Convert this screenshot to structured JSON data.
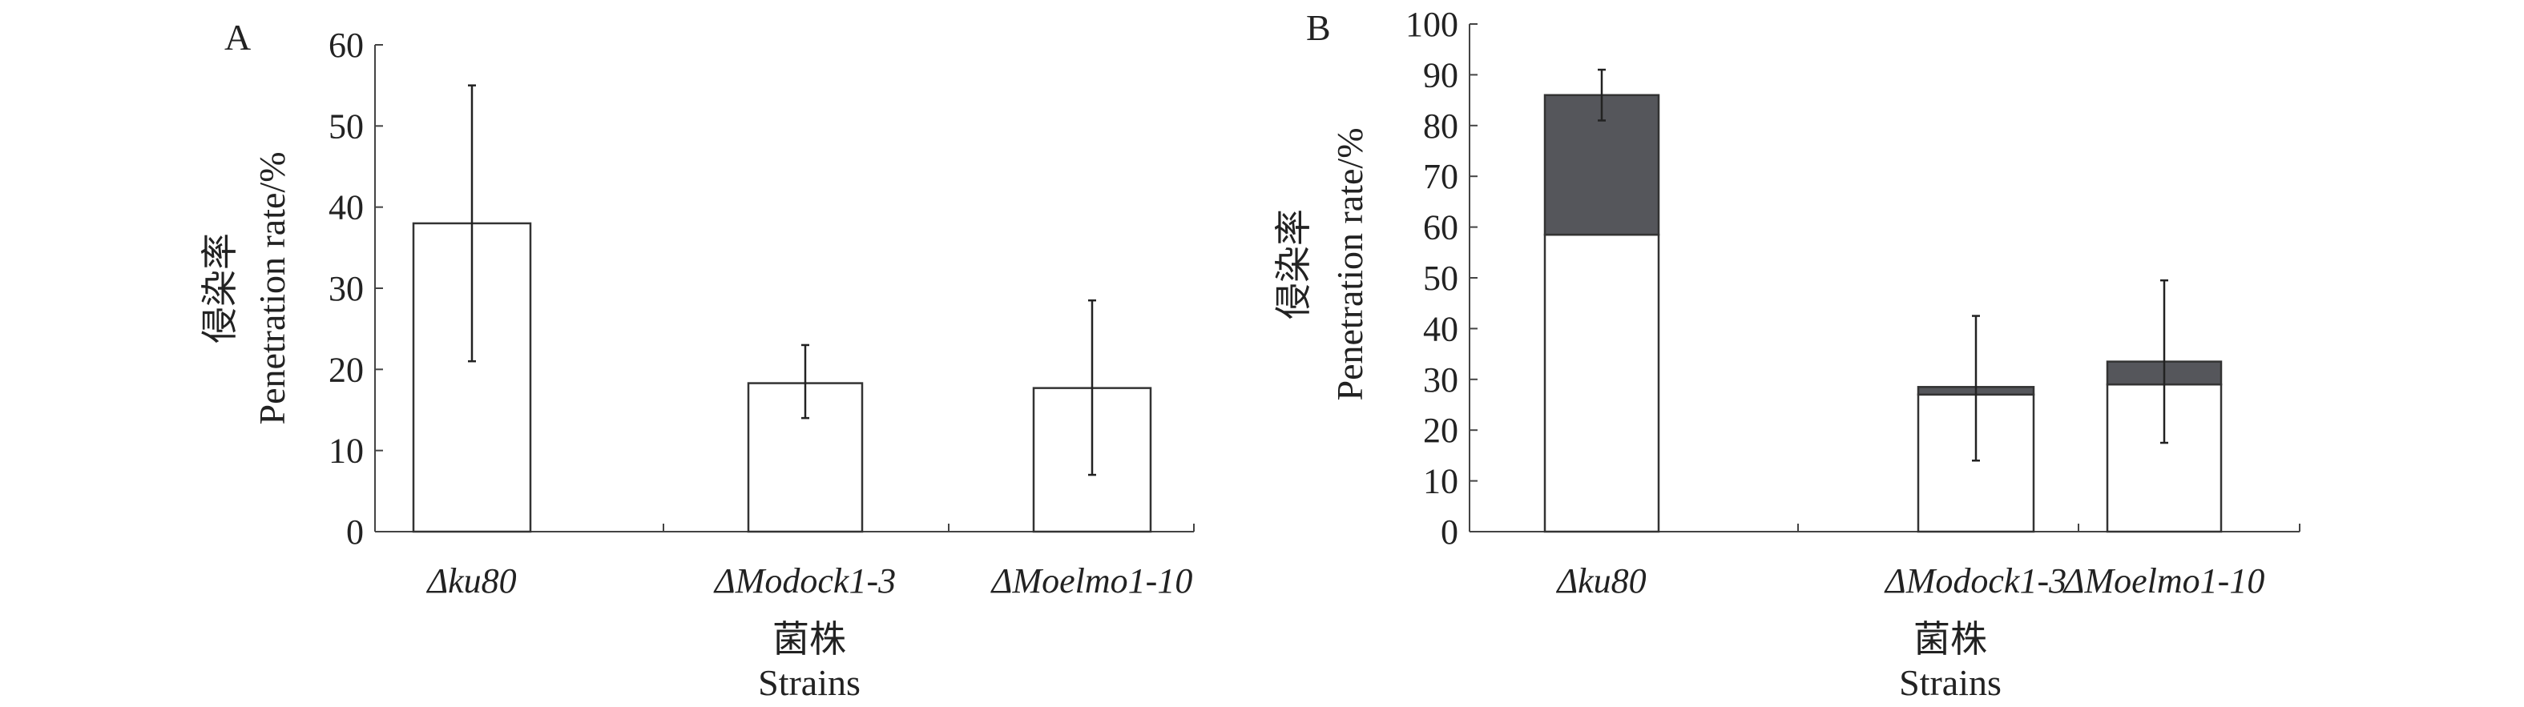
{
  "chart_data": [
    {
      "panel": "A",
      "type": "bar",
      "categories": [
        "Δku80",
        "ΔModock1-3",
        "ΔMoelmo1-10"
      ],
      "series": [
        {
          "name": "Penetration rate",
          "values": [
            38,
            18.3,
            17.7
          ],
          "color": "#ffffff"
        }
      ],
      "error_bars": [
        [
          21,
          55
        ],
        [
          14,
          23
        ],
        [
          7,
          28.5
        ]
      ],
      "ylabel_cn": "侵染率",
      "ylabel": "Penetration rate/%",
      "xlabel_cn": "菌株",
      "xlabel": "Strains",
      "ylim": [
        0,
        60
      ],
      "yticks": [
        0,
        10,
        20,
        30,
        40,
        50,
        60
      ],
      "grid": false
    },
    {
      "panel": "B",
      "type": "bar",
      "stacked": true,
      "categories": [
        "Δku80",
        "ΔModock1-3",
        "ΔMoelmo1-10"
      ],
      "series": [
        {
          "name": "lower",
          "values": [
            58.5,
            27,
            29
          ],
          "color": "#ffffff"
        },
        {
          "name": "upper",
          "values": [
            27.5,
            1.5,
            4.5
          ],
          "color": "#55565b"
        }
      ],
      "error_bars": [
        [
          81,
          91
        ],
        [
          14,
          42.5
        ],
        [
          17.5,
          49.5
        ]
      ],
      "ylabel_cn": "侵染率",
      "ylabel": "Penetration rate/%",
      "xlabel_cn": "菌株",
      "xlabel": "Strains",
      "ylim": [
        0,
        100
      ],
      "yticks": [
        0,
        10,
        20,
        30,
        40,
        50,
        60,
        70,
        80,
        90,
        100
      ],
      "grid": false
    }
  ]
}
